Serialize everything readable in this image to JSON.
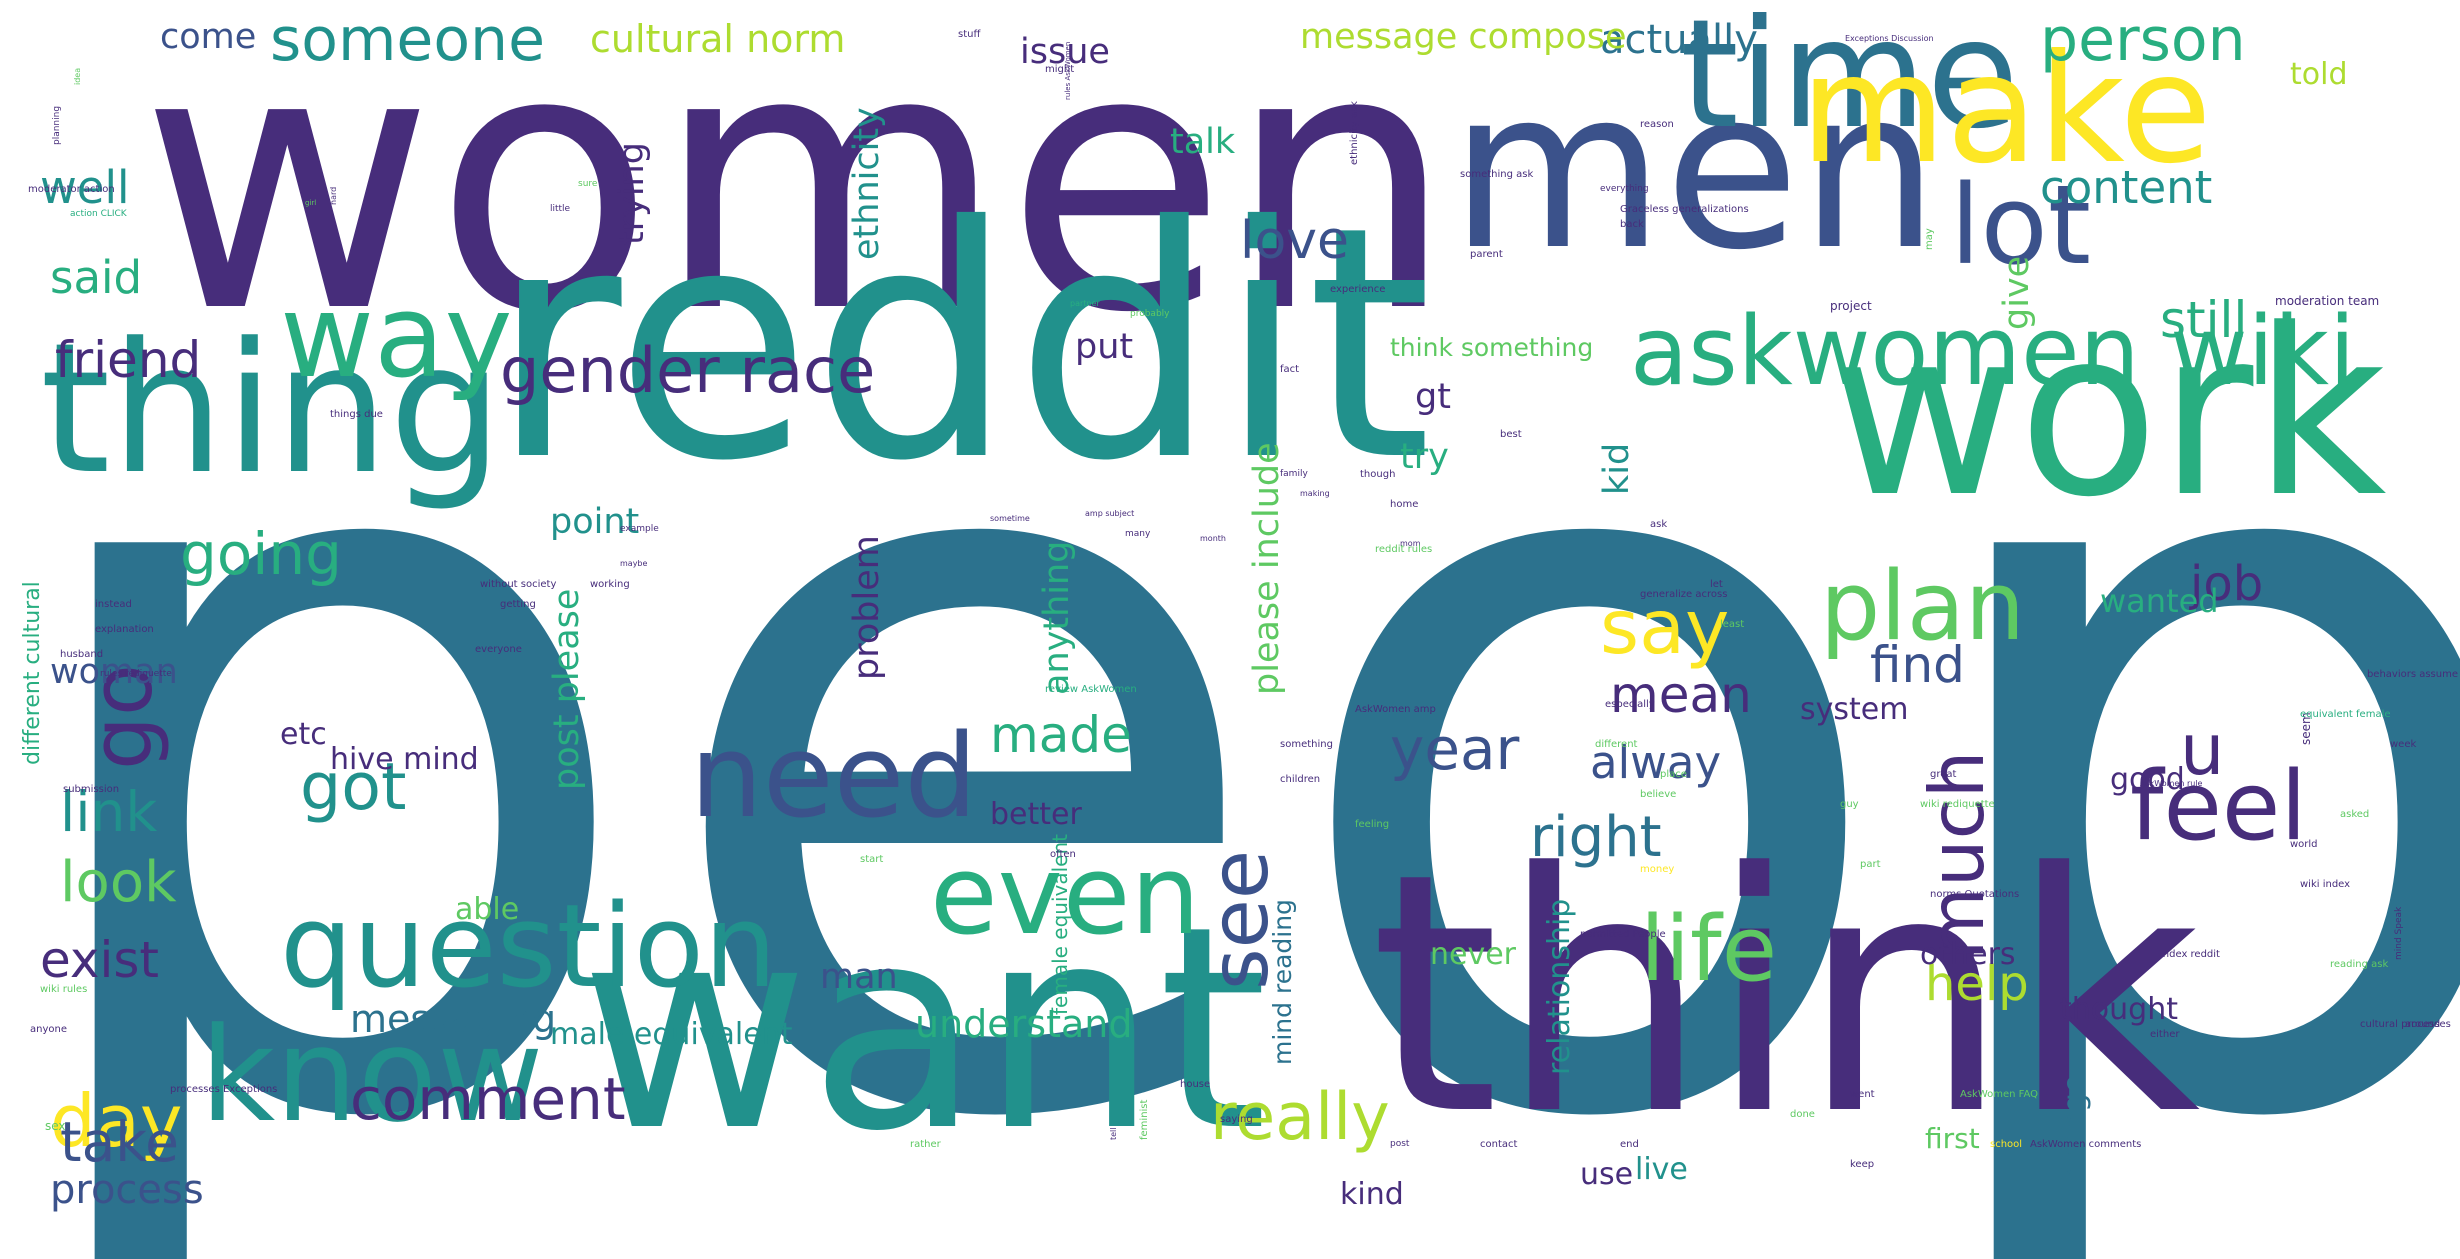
{
  "palette": {
    "p1": "#472d7b",
    "p2": "#3b528b",
    "p3": "#2c728e",
    "p4": "#21918c",
    "p5": "#28ae80",
    "p6": "#5ec962",
    "p7": "#addc30",
    "p8": "#fde725"
  },
  "words": [
    {
      "text": "people",
      "color": "p3"
    },
    {
      "text": "women",
      "color": "p1"
    },
    {
      "text": "reddit",
      "color": "p4"
    },
    {
      "text": "think",
      "color": "p1"
    },
    {
      "text": "men",
      "color": "p2"
    },
    {
      "text": "want",
      "color": "p4"
    },
    {
      "text": "work",
      "color": "p5"
    },
    {
      "text": "thing",
      "color": "p4"
    },
    {
      "text": "time",
      "color": "p3"
    },
    {
      "text": "make",
      "color": "p8"
    },
    {
      "text": "know",
      "color": "p4"
    },
    {
      "text": "question",
      "color": "p4"
    },
    {
      "text": "need",
      "color": "p2"
    },
    {
      "text": "even",
      "color": "p5"
    },
    {
      "text": "way",
      "color": "p5"
    },
    {
      "text": "lot",
      "color": "p2"
    },
    {
      "text": "askwomen wiki",
      "color": "p5"
    },
    {
      "text": "plan",
      "color": "p6"
    },
    {
      "text": "feel",
      "color": "p1"
    },
    {
      "text": "life",
      "color": "p6"
    },
    {
      "text": "gender race",
      "color": "p1"
    },
    {
      "text": "go",
      "color": "p1"
    },
    {
      "text": "say",
      "color": "p8"
    },
    {
      "text": "much",
      "color": "p1"
    },
    {
      "text": "see",
      "color": "p2"
    },
    {
      "text": "someone",
      "color": "p4"
    },
    {
      "text": "person",
      "color": "p5"
    },
    {
      "text": "day",
      "color": "p8"
    },
    {
      "text": "really",
      "color": "p7"
    },
    {
      "text": "u",
      "color": "p1"
    },
    {
      "text": "comment",
      "color": "p1"
    },
    {
      "text": "going",
      "color": "p5"
    },
    {
      "text": "year",
      "color": "p2"
    },
    {
      "text": "love",
      "color": "p2"
    },
    {
      "text": "got",
      "color": "p4"
    },
    {
      "text": "look",
      "color": "p6"
    },
    {
      "text": "link",
      "color": "p4"
    },
    {
      "text": "take",
      "color": "p2"
    },
    {
      "text": "right",
      "color": "p3"
    },
    {
      "text": "still",
      "color": "p5"
    },
    {
      "text": "content",
      "color": "p4"
    },
    {
      "text": "friend",
      "color": "p1"
    },
    {
      "text": "well",
      "color": "p4"
    },
    {
      "text": "made",
      "color": "p5"
    },
    {
      "text": "mean",
      "color": "p1"
    },
    {
      "text": "exist",
      "color": "p1"
    },
    {
      "text": "alway",
      "color": "p2"
    },
    {
      "text": "find",
      "color": "p2"
    },
    {
      "text": "job",
      "color": "p1"
    },
    {
      "text": "said",
      "color": "p5"
    },
    {
      "text": "help",
      "color": "p7"
    },
    {
      "text": "actually",
      "color": "p3"
    },
    {
      "text": "process",
      "color": "p2"
    },
    {
      "text": "messaging",
      "color": "p3"
    },
    {
      "text": "understand",
      "color": "p5"
    },
    {
      "text": "cultural norm",
      "color": "p7"
    },
    {
      "text": "message compose",
      "color": "p7"
    },
    {
      "text": "issue",
      "color": "p1"
    },
    {
      "text": "come",
      "color": "p2"
    },
    {
      "text": "talk",
      "color": "p5"
    },
    {
      "text": "trying",
      "color": "p1"
    },
    {
      "text": "ethnicity",
      "color": "p4"
    },
    {
      "text": "put",
      "color": "p1"
    },
    {
      "text": "point",
      "color": "p4"
    },
    {
      "text": "try",
      "color": "p5"
    },
    {
      "text": "gt",
      "color": "p1"
    },
    {
      "text": "kid",
      "color": "p4"
    },
    {
      "text": "give",
      "color": "p6"
    },
    {
      "text": "told",
      "color": "p7"
    },
    {
      "text": "good",
      "color": "p1"
    },
    {
      "text": "wanted",
      "color": "p5"
    },
    {
      "text": "system",
      "color": "p1"
    },
    {
      "text": "better",
      "color": "p1"
    },
    {
      "text": "etc",
      "color": "p1"
    },
    {
      "text": "hive mind",
      "color": "p1"
    },
    {
      "text": "woman",
      "color": "p2"
    },
    {
      "text": "problem",
      "color": "p1"
    },
    {
      "text": "anything",
      "color": "p5"
    },
    {
      "text": "please include",
      "color": "p6"
    },
    {
      "text": "post please",
      "color": "p5"
    },
    {
      "text": "man",
      "color": "p2"
    },
    {
      "text": "male equivalent",
      "color": "p4"
    },
    {
      "text": "able",
      "color": "p6"
    },
    {
      "text": "never",
      "color": "p6"
    },
    {
      "text": "others",
      "color": "p1"
    },
    {
      "text": "thought",
      "color": "p1"
    },
    {
      "text": "live",
      "color": "p4"
    },
    {
      "text": "use",
      "color": "p1"
    },
    {
      "text": "kind",
      "color": "p1"
    },
    {
      "text": "first",
      "color": "p6"
    },
    {
      "text": "change",
      "color": "p3"
    },
    {
      "text": "relationship",
      "color": "p4"
    },
    {
      "text": "think something",
      "color": "p6"
    },
    {
      "text": "mind reading",
      "color": "p3"
    },
    {
      "text": "different cultural",
      "color": "p5"
    },
    {
      "text": "female equivalent",
      "color": "p5"
    },
    {
      "text": "ethnicity ask",
      "color": "p1"
    },
    {
      "text": "Exceptions Discussion",
      "color": "p1"
    },
    {
      "text": "stuff",
      "color": "p1"
    },
    {
      "text": "might",
      "color": "p1"
    },
    {
      "text": "idea",
      "color": "p6"
    },
    {
      "text": "planning",
      "color": "p1"
    },
    {
      "text": "moderator action",
      "color": "p1"
    },
    {
      "text": "action CLICK",
      "color": "p5"
    },
    {
      "text": "girl",
      "color": "p6"
    },
    {
      "text": "hard",
      "color": "p1"
    },
    {
      "text": "sure",
      "color": "p6"
    },
    {
      "text": "little",
      "color": "p1"
    },
    {
      "text": "reason",
      "color": "p1"
    },
    {
      "text": "Graceless generalizations",
      "color": "p1"
    },
    {
      "text": "everything",
      "color": "p1"
    },
    {
      "text": "something ask",
      "color": "p1"
    },
    {
      "text": "parent",
      "color": "p1"
    },
    {
      "text": "experience",
      "color": "p1"
    },
    {
      "text": "project",
      "color": "p1"
    },
    {
      "text": "moderation team",
      "color": "p1"
    },
    {
      "text": "back",
      "color": "p1"
    },
    {
      "text": "rules AskWomen",
      "color": "p1"
    },
    {
      "text": "may",
      "color": "p6"
    },
    {
      "text": "partner",
      "color": "p5"
    },
    {
      "text": "probably",
      "color": "p6"
    },
    {
      "text": "fact",
      "color": "p1"
    },
    {
      "text": "things due",
      "color": "p1"
    },
    {
      "text": "family",
      "color": "p1"
    },
    {
      "text": "making",
      "color": "p1"
    },
    {
      "text": "home",
      "color": "p1"
    },
    {
      "text": "mom",
      "color": "p1"
    },
    {
      "text": "best",
      "color": "p1"
    },
    {
      "text": "sometime",
      "color": "p1"
    },
    {
      "text": "amp subject",
      "color": "p1"
    },
    {
      "text": "many",
      "color": "p1"
    },
    {
      "text": "month",
      "color": "p1"
    },
    {
      "text": "example",
      "color": "p1"
    },
    {
      "text": "maybe",
      "color": "p1"
    },
    {
      "text": "instead",
      "color": "p1"
    },
    {
      "text": "explanation",
      "color": "p1"
    },
    {
      "text": "without society",
      "color": "p1"
    },
    {
      "text": "getting",
      "color": "p1"
    },
    {
      "text": "husband",
      "color": "p1"
    },
    {
      "text": "rules rediquette",
      "color": "p1"
    },
    {
      "text": "working",
      "color": "p1"
    },
    {
      "text": "though",
      "color": "p1"
    },
    {
      "text": "reddit rules",
      "color": "p6"
    },
    {
      "text": "ask",
      "color": "p1"
    },
    {
      "text": "generalize across",
      "color": "p1"
    },
    {
      "text": "least",
      "color": "p6"
    },
    {
      "text": "let",
      "color": "p1"
    },
    {
      "text": "everyone",
      "color": "p1"
    },
    {
      "text": "especially",
      "color": "p1"
    },
    {
      "text": "different",
      "color": "p6"
    },
    {
      "text": "seem",
      "color": "p1"
    },
    {
      "text": "behaviors assume",
      "color": "p1"
    },
    {
      "text": "AskWomen amp",
      "color": "p1"
    },
    {
      "text": "believe",
      "color": "p6"
    },
    {
      "text": "place",
      "color": "p6"
    },
    {
      "text": "equivalent female",
      "color": "p5"
    },
    {
      "text": "week",
      "color": "p1"
    },
    {
      "text": "review AskWomen",
      "color": "p5"
    },
    {
      "text": "something",
      "color": "p1"
    },
    {
      "text": "feeling",
      "color": "p6"
    },
    {
      "text": "children",
      "color": "p1"
    },
    {
      "text": "great",
      "color": "p1"
    },
    {
      "text": "wiki rediquette",
      "color": "p6"
    },
    {
      "text": "asked",
      "color": "p6"
    },
    {
      "text": "money",
      "color": "p8"
    },
    {
      "text": "submission",
      "color": "p1"
    },
    {
      "text": "often",
      "color": "p1"
    },
    {
      "text": "start",
      "color": "p6"
    },
    {
      "text": "guy",
      "color": "p6"
    },
    {
      "text": "part",
      "color": "p6"
    },
    {
      "text": "permitted People",
      "color": "p1"
    },
    {
      "text": "norms Quotations",
      "color": "p1"
    },
    {
      "text": "AskWomen rule",
      "color": "p1"
    },
    {
      "text": "world",
      "color": "p1"
    },
    {
      "text": "wiki index",
      "color": "p1"
    },
    {
      "text": "mind Speak",
      "color": "p1"
    },
    {
      "text": "reading ask",
      "color": "p6"
    },
    {
      "text": "index reddit",
      "color": "p1"
    },
    {
      "text": "around",
      "color": "p1"
    },
    {
      "text": "cultural processes",
      "color": "p1"
    },
    {
      "text": "wiki rules",
      "color": "p6"
    },
    {
      "text": "anyone",
      "color": "p1"
    },
    {
      "text": "either",
      "color": "p1"
    },
    {
      "text": "processes Exceptions",
      "color": "p1"
    },
    {
      "text": "house",
      "color": "p1"
    },
    {
      "text": "saying",
      "color": "p1"
    },
    {
      "text": "went",
      "color": "p1"
    },
    {
      "text": "done",
      "color": "p6"
    },
    {
      "text": "sex",
      "color": "p6"
    },
    {
      "text": "feminist",
      "color": "p6"
    },
    {
      "text": "tell",
      "color": "p1"
    },
    {
      "text": "rather",
      "color": "p6"
    },
    {
      "text": "post",
      "color": "p1"
    },
    {
      "text": "AskWomen FAQ",
      "color": "p6"
    },
    {
      "text": "end",
      "color": "p1"
    },
    {
      "text": "contact",
      "color": "p1"
    },
    {
      "text": "school",
      "color": "p8"
    },
    {
      "text": "AskWomen comments",
      "color": "p1"
    },
    {
      "text": "keep",
      "color": "p1"
    }
  ]
}
